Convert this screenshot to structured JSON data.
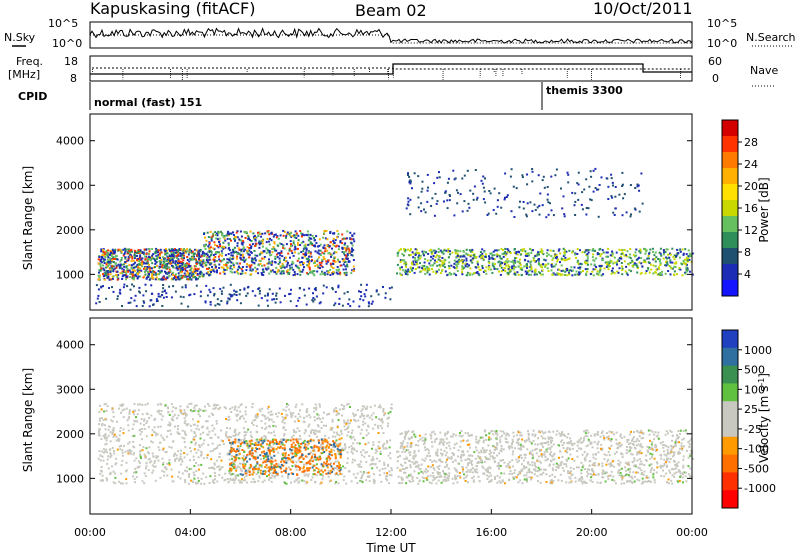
{
  "header": {
    "station": "Kapuskasing (fitACF)",
    "beam": "Beam 02",
    "date": "10/Oct/2011"
  },
  "top_panels": {
    "nsky_label": "N.Sky",
    "nsearch_label": "N.Search",
    "noise_ticks": [
      "10^5",
      "10^0"
    ],
    "freq_label_1": "Freq.",
    "freq_label_2": "[MHz]",
    "freq_ticks": [
      "18",
      "8"
    ],
    "nave_label": "Nave",
    "nave_ticks": [
      "60",
      "0"
    ],
    "cpid_label": "CPID",
    "cpid_1": "normal (fast) 151",
    "cpid_2": "themis 3300"
  },
  "chart_data": [
    {
      "type": "heatmap",
      "panel": "power",
      "ylabel": "Slant Range [km]",
      "xlabel": "",
      "y_ticks": [
        1000,
        2000,
        3000,
        4000
      ],
      "ylim": [
        200,
        4600
      ],
      "xlim": [
        0,
        24
      ],
      "colorbar_label": "Power [dB]",
      "colorbar_ticks": [
        "28",
        "24",
        "20",
        "16",
        "12",
        "8",
        "4"
      ],
      "colorbar_colors": [
        "#d40000",
        "#ff3300",
        "#ff7a00",
        "#ffb000",
        "#ffe000",
        "#c8d800",
        "#66c060",
        "#2f8f5a",
        "#205070",
        "#1c2cb4",
        "#1414ff"
      ],
      "scatter_regions": [
        {
          "t0": 0.3,
          "t1": 4.5,
          "r0": 900,
          "r1": 1600,
          "weight": "high"
        },
        {
          "t0": 4.5,
          "t1": 10.5,
          "r0": 1000,
          "r1": 2000,
          "weight": "high"
        },
        {
          "t0": 12.2,
          "t1": 24,
          "r0": 1000,
          "r1": 1600,
          "weight": "med"
        },
        {
          "t0": 12.5,
          "t1": 22,
          "r0": 2300,
          "r1": 3400,
          "weight": "low"
        },
        {
          "t0": 0.2,
          "t1": 12,
          "r0": 300,
          "r1": 800,
          "weight": "low"
        }
      ]
    },
    {
      "type": "heatmap",
      "panel": "velocity",
      "ylabel": "Slant Range [km]",
      "xlabel": "Time UT",
      "x_ticks": [
        "00:00",
        "04:00",
        "08:00",
        "12:00",
        "16:00",
        "20:00",
        "00:00"
      ],
      "y_ticks": [
        1000,
        2000,
        3000,
        4000
      ],
      "ylim": [
        200,
        4600
      ],
      "xlim": [
        0,
        24
      ],
      "colorbar_label": "Velocity [m s-1]",
      "colorbar_label_main": "Velocity [m s",
      "colorbar_label_sup": "-1",
      "colorbar_label_end": "]",
      "colorbar_ticks": [
        "1000",
        "500",
        "100",
        "25",
        "-25",
        "-100",
        "-500",
        "-1000"
      ],
      "colorbar_colors": [
        "#2040c0",
        "#3070a0",
        "#3a9050",
        "#60c040",
        "#c8c8c0",
        "#c8c8c0",
        "#ff9a00",
        "#ff7000",
        "#ff3000",
        "#ff0000"
      ],
      "scatter_regions": [
        {
          "t0": 0.3,
          "t1": 12,
          "r0": 900,
          "r1": 2700,
          "weight": "ground"
        },
        {
          "t0": 12.2,
          "t1": 24,
          "r0": 900,
          "r1": 2100,
          "weight": "ground"
        },
        {
          "t0": 5.5,
          "t1": 10,
          "r0": 1100,
          "r1": 1900,
          "weight": "orange"
        }
      ]
    }
  ]
}
